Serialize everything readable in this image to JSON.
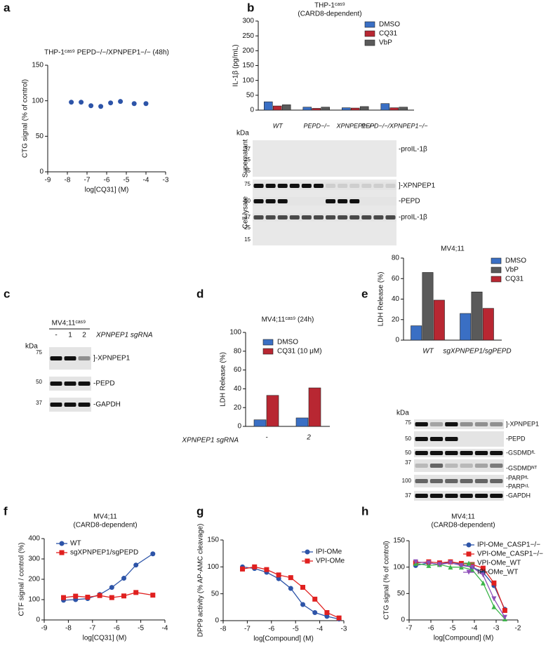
{
  "panel_labels": [
    "a",
    "b",
    "c",
    "d",
    "e",
    "f",
    "g",
    "h"
  ],
  "chart_data": [
    {
      "type": "scatter",
      "title": [
        "THP-1ᶜᵃˢ⁹ PEPD−/−/XPNPEP1−/− (48h)"
      ],
      "xlabel": "log[CQ31] (M)",
      "ylabel": "CTG signal (% of control)",
      "xlim": [
        -9,
        -3
      ],
      "xticks": [
        -9,
        -8,
        -7,
        -6,
        -5,
        -4,
        -3
      ],
      "ylim": [
        0,
        150
      ],
      "yticks": [
        0,
        50,
        100,
        150
      ],
      "x": [
        -7.8,
        -7.3,
        -6.8,
        -6.3,
        -5.8,
        -5.3,
        -4.6,
        -4.0
      ],
      "series": [
        {
          "color": "#2d54a8",
          "marker": "circle",
          "values": [
            98,
            98,
            93,
            92,
            97,
            99,
            96,
            96
          ]
        }
      ]
    },
    {
      "type": "bar",
      "title": [
        "THP-1ᶜᵃˢ⁹",
        "(CARD8-dependent)"
      ],
      "ylabel": "IL-1β (pg/mL)",
      "categories": [
        "WT",
        "PEPD−/−",
        "XPNPEP1−/−",
        "PEPD−/−/XPNPEP1−/−"
      ],
      "ylim": [
        0,
        300
      ],
      "yticks": [
        0,
        50,
        100,
        150,
        200,
        250,
        300
      ],
      "series": [
        {
          "name": "DMSO",
          "color": "#3a6fc4",
          "values": [
            28,
            10,
            8,
            22
          ]
        },
        {
          "name": "CQ31",
          "color": "#b82732",
          "values": [
            14,
            6,
            7,
            8
          ]
        },
        {
          "name": "VbP",
          "color": "#5a5a5a",
          "values": [
            18,
            10,
            12,
            10
          ]
        }
      ]
    },
    {
      "type": "bar",
      "title": [
        "MV4;11ᶜᵃˢ⁹ (24h)"
      ],
      "ylabel": "LDH Release (%)",
      "xlabel": "XPNPEP1 sgRNA",
      "categories": [
        "-",
        "2"
      ],
      "ylim": [
        0,
        100
      ],
      "yticks": [
        0,
        20,
        40,
        60,
        80,
        100
      ],
      "series": [
        {
          "name": "DMSO",
          "color": "#3a6fc4",
          "values": [
            7,
            9
          ]
        },
        {
          "name": "CQ31 (10 μM)",
          "color": "#b82732",
          "values": [
            33,
            41
          ]
        }
      ]
    },
    {
      "type": "bar",
      "title": [
        "MV4;11"
      ],
      "ylabel": "LDH Release (%)",
      "categories": [
        "WT",
        "sgXPNPEP1/sgPEPD"
      ],
      "ylim": [
        0,
        80
      ],
      "yticks": [
        0,
        20,
        40,
        60,
        80
      ],
      "series": [
        {
          "name": "DMSO",
          "color": "#3a6fc4",
          "values": [
            14,
            26
          ]
        },
        {
          "name": "VbP",
          "color": "#5a5a5a",
          "values": [
            66,
            47
          ]
        },
        {
          "name": "CQ31",
          "color": "#b82732",
          "values": [
            39,
            31
          ]
        }
      ]
    },
    {
      "type": "line",
      "title": [
        "MV4;11",
        "(CARD8-dependent)"
      ],
      "xlabel": "log[CQ31] (M)",
      "ylabel": "CTF signal / control (%)",
      "xlim": [
        -9,
        -4
      ],
      "xticks": [
        -9,
        -8,
        -7,
        -6,
        -5,
        -4
      ],
      "ylim": [
        0,
        400
      ],
      "yticks": [
        0,
        100,
        200,
        300,
        400
      ],
      "x": [
        -8.2,
        -7.7,
        -7.2,
        -6.7,
        -6.2,
        -5.7,
        -5.2,
        -4.5
      ],
      "series": [
        {
          "name": "WT",
          "color": "#2d54a8",
          "marker": "circle",
          "values": [
            97,
            100,
            105,
            125,
            160,
            205,
            270,
            325
          ]
        },
        {
          "name": "sgXPNPEP1/sgPEPD",
          "color": "#e0201f",
          "marker": "square",
          "values": [
            110,
            117,
            112,
            120,
            110,
            118,
            135,
            122
          ]
        }
      ]
    },
    {
      "type": "line",
      "xlabel": "log[Compound] (M)",
      "ylabel": "DPP9 activity (% AP-AMC cleavage)",
      "xlim": [
        -8,
        -3
      ],
      "xticks": [
        -8,
        -7,
        -6,
        -5,
        -4,
        -3
      ],
      "ylim": [
        0,
        150
      ],
      "yticks": [
        0,
        50,
        100,
        150
      ],
      "x": [
        -7.2,
        -6.7,
        -6.2,
        -5.7,
        -5.2,
        -4.7,
        -4.2,
        -3.7,
        -3.2
      ],
      "series": [
        {
          "name": "IPI-OMe",
          "color": "#2d54a8",
          "marker": "circle",
          "values": [
            100,
            97,
            90,
            78,
            60,
            30,
            15,
            8,
            3
          ]
        },
        {
          "name": "VPI-OMe",
          "color": "#e0201f",
          "marker": "square",
          "values": [
            96,
            100,
            95,
            85,
            80,
            62,
            40,
            15,
            5
          ]
        }
      ]
    },
    {
      "type": "line",
      "title": [
        "MV4;11",
        "(CARD8-dependent)"
      ],
      "xlabel": "log[Compound] (M)",
      "ylabel": "CTG signal (% of control)",
      "xlim": [
        -7,
        -2
      ],
      "xticks": [
        -7,
        -6,
        -5,
        -4,
        -3,
        -2
      ],
      "ylim": [
        0,
        150
      ],
      "yticks": [
        0,
        50,
        100,
        150
      ],
      "x": [
        -6.7,
        -6.1,
        -5.6,
        -5.1,
        -4.6,
        -4.1,
        -3.6,
        -3.1,
        -2.6
      ],
      "series": [
        {
          "name": "IPI-OMe_CASP1−/−",
          "color": "#2d54a8",
          "marker": "circle",
          "values": [
            103,
            108,
            105,
            110,
            105,
            100,
            90,
            65,
            20
          ]
        },
        {
          "name": "VPI-OMe_CASP1−/−",
          "color": "#e0201f",
          "marker": "square",
          "values": [
            108,
            110,
            108,
            110,
            107,
            105,
            98,
            70,
            18
          ]
        },
        {
          "name": "VPI-OMe_WT",
          "color": "#3cb54a",
          "marker": "triangle",
          "values": [
            107,
            103,
            105,
            100,
            100,
            95,
            70,
            25,
            2
          ]
        },
        {
          "name": "IPI-OMe_WT",
          "color": "#8e4fb8",
          "marker": "triangle-down",
          "values": [
            110,
            108,
            105,
            108,
            103,
            100,
            85,
            40,
            5
          ]
        }
      ]
    }
  ],
  "blot_b": {
    "kda": "kDa",
    "sections": [
      {
        "name": "Supernatant",
        "markers": [
          37,
          25,
          15
        ],
        "bands": [
          "-proIL-1β"
        ]
      },
      {
        "name": "Cell lysate",
        "markers": [
          75,
          50,
          37,
          25,
          15
        ],
        "bands": [
          "]-XPNPEP1",
          "-PEPD",
          "-proIL-1β"
        ]
      }
    ]
  },
  "blot_c": {
    "header": "MV4;11ᶜᵃˢ⁹",
    "lanes": [
      "-",
      "1",
      "2"
    ],
    "lane_title": "XPNPEP1 sgRNA",
    "kda": "kDa",
    "markers": [
      75,
      50,
      37
    ],
    "bands": [
      "]-XPNPEP1",
      "-PEPD",
      "-GAPDH"
    ]
  },
  "blot_e": {
    "kda": "kDa",
    "markers": [
      75,
      50,
      50,
      37,
      100,
      37
    ],
    "bands": [
      "]-XPNPEP1",
      "-PEPD",
      "-GSDMDᶠᴸ",
      "-GSDMDᴺᵀ",
      "-PARPᶠᴸ",
      "-PARPᶜᴸ",
      "-GAPDH"
    ]
  }
}
